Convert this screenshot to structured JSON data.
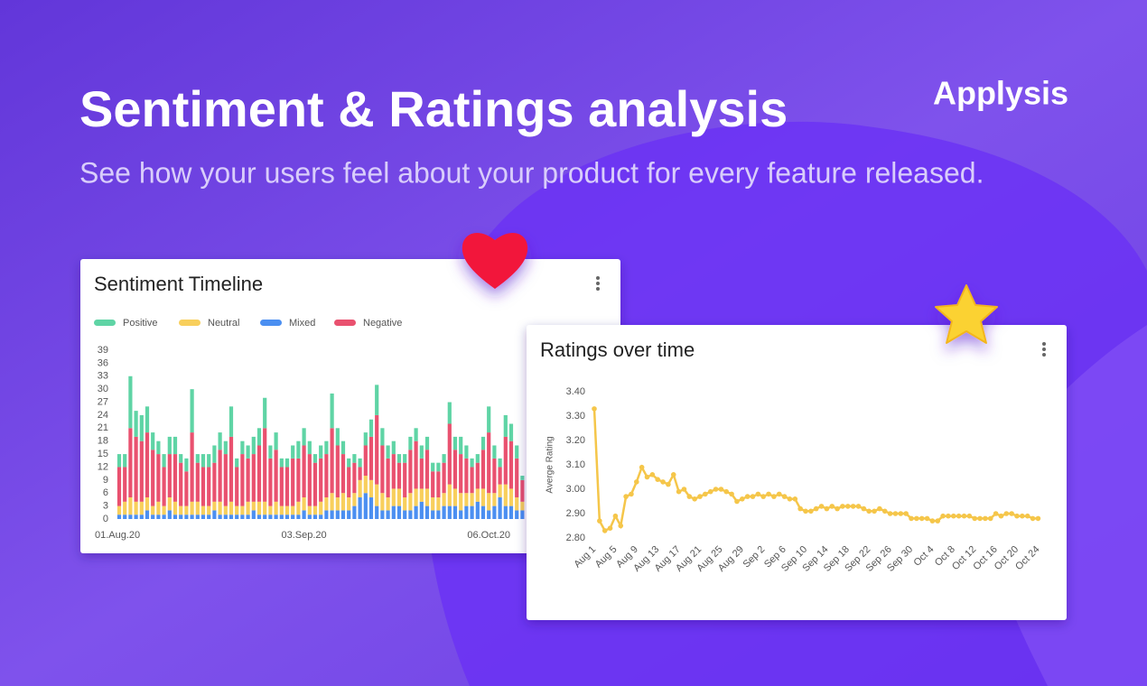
{
  "header": {
    "title": "Sentiment & Ratings analysis",
    "subtitle": "See how your users feel about your product for every feature released.",
    "brand": "Applysis"
  },
  "chart_data": [
    {
      "type": "stacked_bar",
      "title": "Sentiment Timeline",
      "categories": [
        "01.Aug.20",
        null,
        null,
        null,
        null,
        null,
        null,
        null,
        null,
        null,
        null,
        null,
        null,
        null,
        null,
        null,
        null,
        null,
        null,
        null,
        null,
        null,
        null,
        null,
        null,
        null,
        null,
        null,
        null,
        null,
        null,
        null,
        null,
        "03.Sep.20",
        null,
        null,
        null,
        null,
        null,
        null,
        null,
        null,
        null,
        null,
        null,
        null,
        null,
        null,
        null,
        null,
        null,
        null,
        null,
        null,
        null,
        null,
        null,
        null,
        null,
        null,
        null,
        null,
        null,
        null,
        null,
        null,
        "06.Oct.20",
        null,
        null,
        null,
        null,
        null,
        null
      ],
      "series": [
        {
          "name": "Positive",
          "color": "#5fd4a5",
          "values": [
            3,
            3,
            12,
            6,
            6,
            6,
            4,
            3,
            3,
            4,
            4,
            2,
            3,
            10,
            2,
            3,
            3,
            4,
            4,
            3,
            7,
            2,
            3,
            3,
            4,
            4,
            7,
            3,
            4,
            2,
            2,
            3,
            4,
            4,
            3,
            2,
            3,
            3,
            8,
            4,
            3,
            2,
            2,
            2,
            3,
            4,
            7,
            4,
            3,
            3,
            2,
            2,
            3,
            3,
            3,
            3,
            2,
            2,
            2,
            5,
            3,
            4,
            3,
            2,
            2,
            3,
            6,
            3,
            2,
            5,
            4,
            3,
            1
          ]
        },
        {
          "name": "Neutral",
          "color": "#f8cf5c",
          "values": [
            2,
            3,
            4,
            3,
            3,
            3,
            2,
            3,
            2,
            3,
            3,
            2,
            2,
            3,
            3,
            2,
            2,
            2,
            3,
            2,
            3,
            2,
            2,
            3,
            2,
            3,
            3,
            2,
            3,
            2,
            2,
            2,
            3,
            3,
            2,
            2,
            3,
            3,
            4,
            3,
            4,
            3,
            3,
            4,
            4,
            4,
            5,
            4,
            3,
            4,
            4,
            3,
            4,
            4,
            3,
            4,
            3,
            3,
            3,
            5,
            4,
            4,
            3,
            3,
            3,
            4,
            4,
            3,
            3,
            5,
            4,
            3,
            2
          ]
        },
        {
          "name": "Mixed",
          "color": "#4b8ff1",
          "values": [
            1,
            1,
            1,
            1,
            1,
            2,
            1,
            1,
            1,
            2,
            1,
            1,
            1,
            1,
            1,
            1,
            1,
            2,
            1,
            1,
            1,
            1,
            1,
            1,
            2,
            1,
            1,
            1,
            1,
            1,
            1,
            1,
            1,
            2,
            1,
            1,
            1,
            2,
            2,
            2,
            2,
            2,
            3,
            5,
            6,
            5,
            3,
            2,
            2,
            3,
            3,
            2,
            2,
            3,
            4,
            3,
            2,
            2,
            3,
            3,
            3,
            2,
            3,
            3,
            4,
            3,
            2,
            3,
            5,
            3,
            3,
            2,
            2
          ]
        },
        {
          "name": "Negative",
          "color": "#e9516f",
          "values": [
            9,
            8,
            16,
            15,
            14,
            15,
            13,
            11,
            9,
            10,
            11,
            10,
            8,
            16,
            9,
            9,
            9,
            9,
            12,
            12,
            15,
            9,
            12,
            10,
            11,
            13,
            17,
            11,
            12,
            9,
            9,
            11,
            10,
            12,
            12,
            10,
            10,
            10,
            15,
            12,
            9,
            7,
            7,
            3,
            7,
            10,
            16,
            11,
            9,
            8,
            6,
            8,
            10,
            11,
            7,
            9,
            6,
            6,
            7,
            14,
            9,
            9,
            8,
            6,
            6,
            9,
            14,
            8,
            4,
            11,
            11,
            9,
            5
          ]
        }
      ],
      "ylim": [
        0,
        39
      ],
      "yticks": [
        0,
        3,
        6,
        9,
        12,
        15,
        18,
        21,
        24,
        27,
        30,
        33,
        36,
        39
      ]
    },
    {
      "type": "line",
      "title": "Ratings over time",
      "y_label": "Averge Rating",
      "color": "#f5c64a",
      "categories": [
        "Aug 1",
        null,
        null,
        null,
        "Aug 5",
        null,
        null,
        null,
        "Aug 9",
        null,
        null,
        null,
        "Aug 13",
        null,
        null,
        null,
        "Aug 17",
        null,
        null,
        null,
        "Aug 21",
        null,
        null,
        null,
        "Aug 25",
        null,
        null,
        null,
        "Aug 29",
        null,
        null,
        null,
        "Sep 2",
        null,
        null,
        null,
        "Sep 6",
        null,
        null,
        null,
        "Sep 10",
        null,
        null,
        null,
        "Sep 14",
        null,
        null,
        null,
        "Sep 18",
        null,
        null,
        null,
        "Sep 22",
        null,
        null,
        null,
        "Sep 26",
        null,
        null,
        null,
        "Sep 30",
        null,
        null,
        null,
        "Oct 4",
        null,
        null,
        null,
        "Oct 8",
        null,
        null,
        null,
        "Oct 12",
        null,
        null,
        null,
        "Oct 16",
        null,
        null,
        null,
        "Oct 20",
        null,
        null,
        null,
        "Oct 24"
      ],
      "values": [
        3.33,
        2.87,
        2.83,
        2.84,
        2.89,
        2.85,
        2.97,
        2.98,
        3.03,
        3.09,
        3.05,
        3.06,
        3.04,
        3.03,
        3.02,
        3.06,
        2.99,
        3.0,
        2.97,
        2.96,
        2.97,
        2.98,
        2.99,
        3.0,
        3.0,
        2.99,
        2.98,
        2.95,
        2.96,
        2.97,
        2.97,
        2.98,
        2.97,
        2.98,
        2.97,
        2.98,
        2.97,
        2.96,
        2.96,
        2.92,
        2.91,
        2.91,
        2.92,
        2.93,
        2.92,
        2.93,
        2.92,
        2.93,
        2.93,
        2.93,
        2.93,
        2.92,
        2.91,
        2.91,
        2.92,
        2.91,
        2.9,
        2.9,
        2.9,
        2.9,
        2.88,
        2.88,
        2.88,
        2.88,
        2.87,
        2.87,
        2.89,
        2.89,
        2.89,
        2.89,
        2.89,
        2.89,
        2.88,
        2.88,
        2.88,
        2.88,
        2.9,
        2.89,
        2.9,
        2.9,
        2.89,
        2.89,
        2.89,
        2.88,
        2.88
      ],
      "ylim": [
        2.8,
        3.4
      ],
      "yticks": [
        {
          "value": 2.8,
          "label": "2.80"
        },
        {
          "value": 2.9,
          "label": "2.90"
        },
        {
          "value": 3.0,
          "label": "3.00"
        },
        {
          "value": 3.1,
          "label": "3.10"
        },
        {
          "value": 3.2,
          "label": "3.20"
        },
        {
          "value": 3.3,
          "label": "3.30"
        },
        {
          "value": 3.4,
          "label": "3.40"
        }
      ]
    }
  ]
}
